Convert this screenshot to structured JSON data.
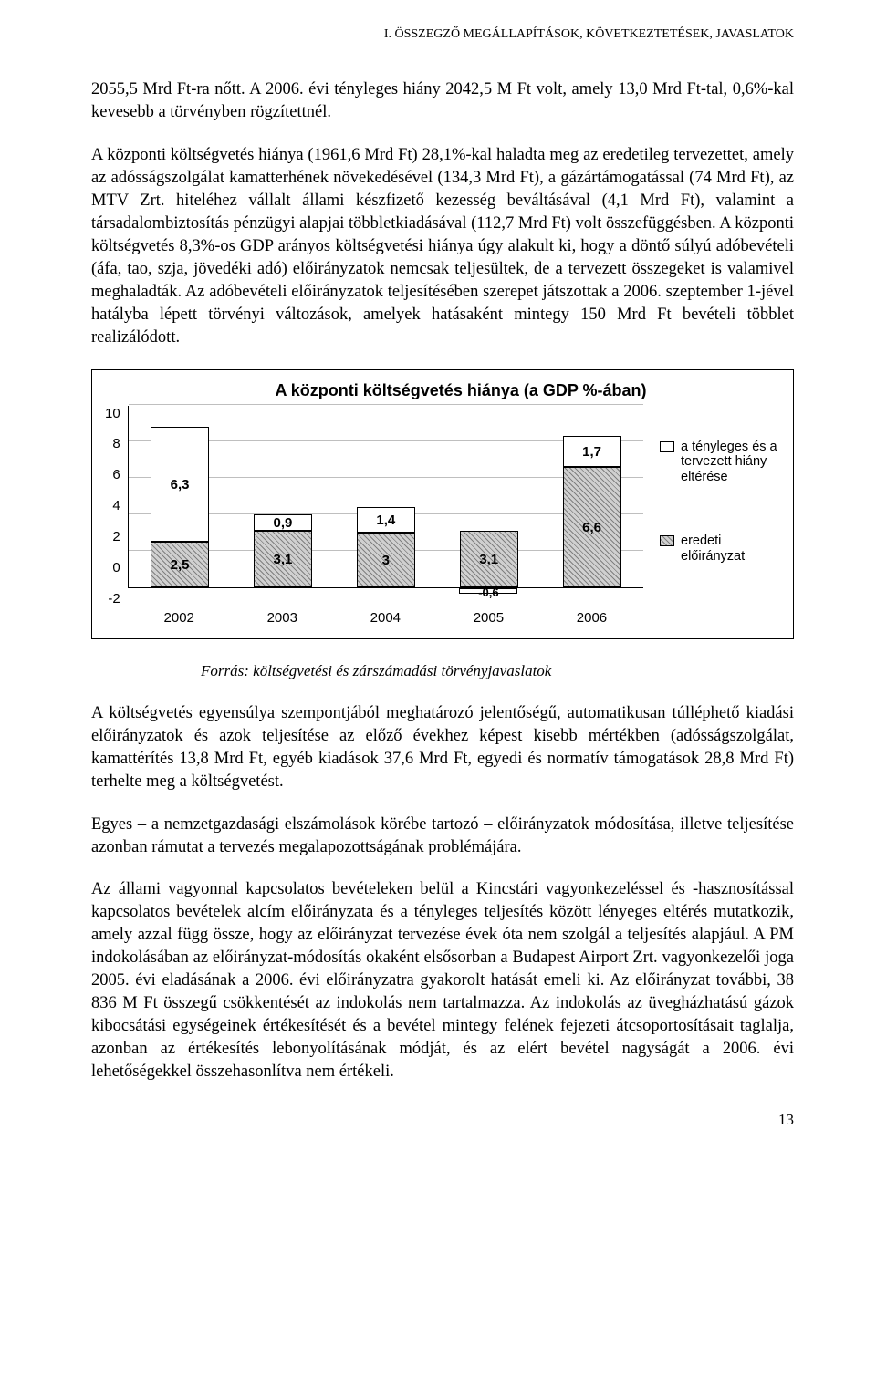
{
  "header": "I. ÖSSZEGZŐ MEGÁLLAPÍTÁSOK, KÖVETKEZTETÉSEK, JAVASLATOK",
  "para1": "2055,5 Mrd Ft-ra nőtt. A 2006. évi tényleges hiány 2042,5 M Ft volt, amely 13,0 Mrd Ft-tal, 0,6%-kal kevesebb a törvényben rögzítettnél.",
  "para2": "A központi költségvetés hiánya (1961,6 Mrd Ft) 28,1%-kal haladta meg az eredetileg tervezettet, amely az adósságszolgálat kamatterhének növekedésével (134,3 Mrd Ft), a gázártámogatással (74 Mrd Ft), az MTV Zrt. hiteléhez vállalt állami készfizető kezesség beváltásával (4,1 Mrd Ft), valamint a társadalombiztosítás pénzügyi alapjai többletkiadásával (112,7 Mrd Ft) volt összefüggésben. A központi költségvetés 8,3%-os GDP arányos költségvetési hiánya úgy alakult ki, hogy a döntő súlyú adóbevételi (áfa, tao, szja, jövedéki adó) előirányzatok nemcsak teljesültek, de a tervezett összegeket is valamivel meghaladták. Az adóbevételi előirányzatok teljesítésében szerepet játszottak a 2006. szeptember 1-jével hatályba lépett törvényi változások, amelyek hatásaként mintegy 150 Mrd Ft bevételi többlet realizálódott.",
  "chart": {
    "title": "A központi költségvetés hiánya (a GDP %-ában)",
    "y_ticks": [
      "10",
      "8",
      "6",
      "4",
      "2",
      "0",
      "-2"
    ],
    "y_min": -2,
    "y_max": 10,
    "categories": [
      "2002",
      "2003",
      "2004",
      "2005",
      "2006"
    ],
    "series1_name": "eredeti előirányzat",
    "series2_name": "a tényleges és a tervezett hiány eltérése",
    "bars": [
      {
        "base": 2.5,
        "delta": 6.3
      },
      {
        "base": 3.1,
        "delta": 0.9
      },
      {
        "base": 3.0,
        "delta": 1.4
      },
      {
        "base": 3.1,
        "delta": -0.6
      },
      {
        "base": 6.6,
        "delta": 1.7
      }
    ],
    "labels": [
      {
        "base": "2,5",
        "delta": "6,3"
      },
      {
        "base": "3,1",
        "delta": "0,9"
      },
      {
        "base": "3",
        "delta": "1,4"
      },
      {
        "base": "3,1",
        "delta": "-0,6"
      },
      {
        "base": "6,6",
        "delta": "1,7"
      }
    ],
    "color_base_fill": "#d0d0d0",
    "color_base_pattern": "#808080",
    "color_delta_fill": "#ffffff",
    "grid_color": "#bfbfbf",
    "axis_color": "#000000"
  },
  "caption": "Forrás: költségvetési és zárszámadási törvényjavaslatok",
  "para3": "A költségvetés egyensúlya szempontjából meghatározó jelentőségű, automatikusan túlléphető kiadási előirányzatok és azok teljesítése az előző évekhez képest kisebb mértékben (adósságszolgálat, kamattérítés 13,8 Mrd Ft, egyéb kiadások 37,6 Mrd Ft, egyedi és normatív támogatások 28,8 Mrd Ft) terhelte meg a költségvetést.",
  "para4": "Egyes – a nemzetgazdasági elszámolások körébe tartozó – előirányzatok módosítása, illetve teljesítése azonban rámutat a tervezés megalapozottságának problémájára.",
  "para5": "Az állami vagyonnal kapcsolatos bevételeken belül a Kincstári vagyonkezeléssel és -hasznosítással kapcsolatos bevételek alcím előirányzata és a tényleges teljesítés között lényeges eltérés mutatkozik, amely azzal függ össze, hogy az előirányzat tervezése évek óta nem szolgál a teljesítés alapjául. A PM indokolásában az előirányzat-módosítás okaként elsősorban a Budapest Airport Zrt. vagyonkezelői joga 2005. évi eladásának a 2006. évi előirányzatra gyakorolt hatását emeli ki. Az előirányzat további, 38 836 M Ft összegű csökkentését az indokolás nem tartalmazza. Az indokolás az üvegházhatású gázok kibocsátási egységeinek értékesítését és a bevétel mintegy felének fejezeti átcsoportosításait taglalja, azonban az értékesítés lebonyolításának módját, és az elért bevétel nagyságát a 2006. évi lehetőségekkel összehasonlítva nem értékeli.",
  "page_number": "13"
}
